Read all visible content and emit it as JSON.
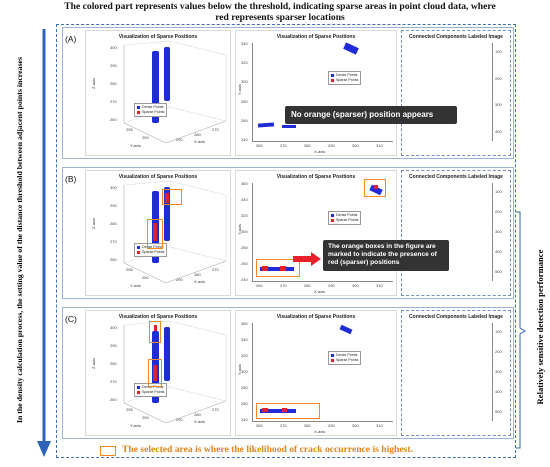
{
  "header": {
    "title": "The colored part represents values below the threshold, indicating sparse areas in point cloud data, where red represents sparser locations"
  },
  "left_axis": {
    "label": "In the density calculation process, the setting value of the distance threshold between adjacent points increases"
  },
  "right_note": {
    "label": "Relatively sensitive detection performance"
  },
  "bottom_note": {
    "label": "The selected area is where the likelihood of crack occurrence is highest."
  },
  "common": {
    "plot3d_title": "Visualization of Sparse Positions",
    "plot2d_title": "Visualization of Sparse Positions",
    "cc_title": "Connected Components Labeled Image",
    "legend_dense": "Dense Points",
    "legend_sparse": "Sparse Points",
    "x_axis": "X-axis",
    "y_axis": "Y-axis",
    "z_axis": "Z-axis",
    "colors": {
      "dense": "#1f2bd6",
      "sparse": "#e0202a",
      "highlight": "#f08a1c",
      "frame": "#3a6fb3"
    }
  },
  "panels": [
    {
      "label": "(A)",
      "callout": "No orange (sparser) position appears",
      "plot3d": {
        "z_ticks": [
          "300",
          "290",
          "280",
          "270",
          "260"
        ],
        "x_ticks": [
          "290",
          "280",
          "270"
        ],
        "y_ticks": [
          "255",
          "250"
        ]
      },
      "plot2d": {
        "y_ticks": [
          "340",
          "320",
          "300",
          "280",
          "260",
          "240"
        ],
        "x_ticks": [
          "260",
          "270",
          "280",
          "290",
          "300",
          "310"
        ]
      },
      "cc": {
        "y_ticks": [
          "100",
          "200",
          "300",
          "400"
        ],
        "x_ticks": [
          "100",
          "200",
          "300"
        ]
      }
    },
    {
      "label": "(B)",
      "callout": "The orange boxes in the figure are marked to indicate the presence of red (sparser) positions",
      "plot3d": {
        "z_ticks": [
          "300",
          "290",
          "280",
          "270",
          "260"
        ],
        "x_ticks": [
          "290",
          "280",
          "270"
        ],
        "y_ticks": [
          "255",
          "250"
        ]
      },
      "plot2d": {
        "y_ticks": [
          "360",
          "340",
          "320",
          "300",
          "280",
          "260",
          "240"
        ],
        "x_ticks": [
          "260",
          "270",
          "280",
          "290",
          "300",
          "310"
        ]
      },
      "cc": {
        "y_ticks": [
          "100",
          "200",
          "300",
          "400",
          "500"
        ],
        "x_ticks": [
          "100",
          "200",
          "300"
        ]
      }
    },
    {
      "label": "(C)",
      "callout": "",
      "plot3d": {
        "z_ticks": [
          "300",
          "290",
          "280",
          "270",
          "260"
        ],
        "x_ticks": [
          "290",
          "280",
          "270"
        ],
        "y_ticks": [
          "255",
          "250"
        ]
      },
      "plot2d": {
        "y_ticks": [
          "360",
          "340",
          "320",
          "300",
          "280",
          "260",
          "240"
        ],
        "x_ticks": [
          "260",
          "270",
          "280",
          "290",
          "300",
          "310"
        ]
      },
      "cc": {
        "y_ticks": [
          "100",
          "200",
          "300",
          "400",
          "500"
        ],
        "x_ticks": [
          "100",
          "200",
          "300"
        ]
      }
    }
  ]
}
